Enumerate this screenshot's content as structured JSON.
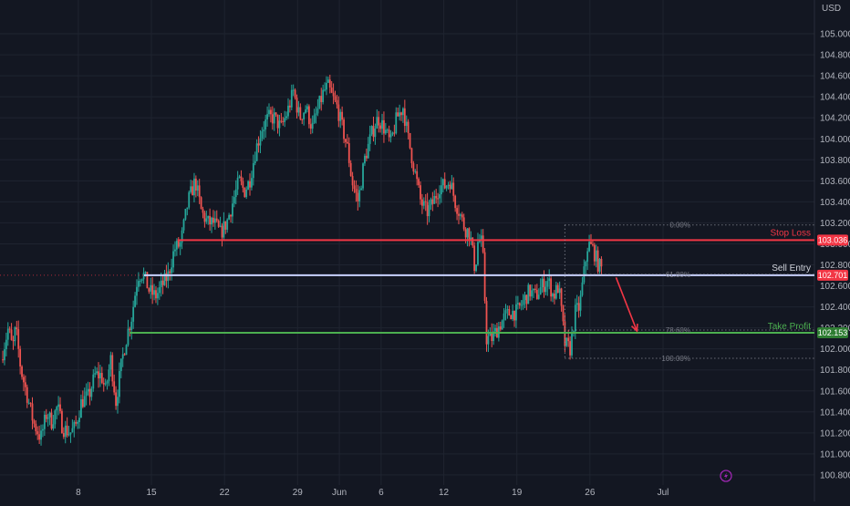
{
  "colors": {
    "background": "#131722",
    "grid": "#1f2430",
    "axis_text": "#b2b5be",
    "candle_up": "#26a69a",
    "candle_down": "#ef5350",
    "stop_loss": "#f23645",
    "sell_entry": "#c9d2ff",
    "take_profit": "#4caf50",
    "arrow": "#f23645",
    "fib_dots": "#9598a1"
  },
  "chart_data": {
    "type": "candlestick",
    "currency": "USD",
    "y_ticks": [
      100.8,
      101.0,
      101.2,
      101.4,
      101.6,
      101.8,
      102.0,
      102.2,
      102.4,
      102.6,
      102.8,
      103.0,
      103.2,
      103.4,
      103.6,
      103.8,
      104.0,
      104.2,
      104.4,
      104.6,
      104.8,
      105.0
    ],
    "y_tick_labels": [
      "100.800",
      "101.000",
      "101.200",
      "101.400",
      "101.600",
      "101.800",
      "102.000",
      "102.200",
      "102.400",
      "102.600",
      "102.800",
      "103.000",
      "103.200",
      "103.400",
      "103.600",
      "103.800",
      "104.000",
      "104.200",
      "104.400",
      "104.600",
      "104.800",
      "105.000"
    ],
    "ylim": [
      100.73,
      105.2
    ],
    "x_range": [
      -7.5,
      70.5
    ],
    "x_ticks": [
      {
        "label": "8",
        "t": 0
      },
      {
        "label": "15",
        "t": 7
      },
      {
        "label": "22",
        "t": 14
      },
      {
        "label": "29",
        "t": 21
      },
      {
        "label": "Jun",
        "t": 25
      },
      {
        "label": "6",
        "t": 29
      },
      {
        "label": "12",
        "t": 35
      },
      {
        "label": "19",
        "t": 42
      },
      {
        "label": "26",
        "t": 49
      },
      {
        "label": "Jul",
        "t": 56
      }
    ],
    "candles_per_day": 6,
    "path_t_start": -7.4,
    "close_path": [
      [
        -7.4,
        101.9
      ],
      [
        -6.7,
        102.2
      ],
      [
        -6.3,
        102.0
      ],
      [
        -6.0,
        102.2
      ],
      [
        -5.5,
        101.8
      ],
      [
        -5.0,
        101.6
      ],
      [
        -4.3,
        101.3
      ],
      [
        -3.6,
        101.15
      ],
      [
        -3.0,
        101.4
      ],
      [
        -2.6,
        101.3
      ],
      [
        -2.0,
        101.45
      ],
      [
        -1.5,
        101.25
      ],
      [
        -0.8,
        101.2
      ],
      [
        -0.3,
        101.25
      ],
      [
        0.3,
        101.5
      ],
      [
        1.0,
        101.55
      ],
      [
        1.6,
        101.75
      ],
      [
        2.2,
        101.75
      ],
      [
        2.6,
        101.6
      ],
      [
        3.1,
        101.9
      ],
      [
        3.6,
        101.5
      ],
      [
        4.2,
        101.9
      ],
      [
        4.7,
        102.15
      ],
      [
        5.1,
        102.3
      ],
      [
        5.7,
        102.7
      ],
      [
        6.2,
        102.72
      ],
      [
        6.8,
        102.55
      ],
      [
        7.4,
        102.5
      ],
      [
        8.0,
        102.6
      ],
      [
        8.6,
        102.7
      ],
      [
        9.2,
        102.95
      ],
      [
        9.8,
        103.0
      ],
      [
        10.5,
        103.4
      ],
      [
        11.2,
        103.6
      ],
      [
        11.8,
        103.3
      ],
      [
        12.4,
        103.2
      ],
      [
        13.0,
        103.2
      ],
      [
        13.6,
        103.1
      ],
      [
        14.2,
        103.2
      ],
      [
        14.8,
        103.4
      ],
      [
        15.4,
        103.6
      ],
      [
        15.9,
        103.5
      ],
      [
        16.4,
        103.6
      ],
      [
        17.0,
        103.9
      ],
      [
        17.6,
        104.1
      ],
      [
        18.2,
        104.2
      ],
      [
        18.8,
        104.2
      ],
      [
        19.4,
        104.1
      ],
      [
        20.0,
        104.25
      ],
      [
        20.6,
        104.45
      ],
      [
        21.2,
        104.2
      ],
      [
        21.8,
        104.3
      ],
      [
        22.4,
        104.1
      ],
      [
        23.0,
        104.3
      ],
      [
        23.5,
        104.45
      ],
      [
        23.9,
        104.5
      ],
      [
        24.3,
        104.4
      ],
      [
        24.8,
        104.3
      ],
      [
        25.3,
        104.1
      ],
      [
        25.8,
        103.9
      ],
      [
        26.2,
        103.6
      ],
      [
        26.8,
        103.4
      ],
      [
        27.4,
        103.8
      ],
      [
        28.1,
        104.05
      ],
      [
        28.7,
        104.2
      ],
      [
        29.3,
        104.1
      ],
      [
        29.9,
        103.95
      ],
      [
        30.5,
        104.2
      ],
      [
        31.1,
        104.3
      ],
      [
        31.6,
        104.0
      ],
      [
        32.2,
        103.7
      ],
      [
        32.8,
        103.4
      ],
      [
        33.4,
        103.3
      ],
      [
        34.0,
        103.4
      ],
      [
        34.6,
        103.55
      ],
      [
        35.1,
        103.55
      ],
      [
        35.6,
        103.6
      ],
      [
        36.1,
        103.4
      ],
      [
        36.5,
        103.3
      ],
      [
        37.0,
        103.15
      ],
      [
        37.5,
        103.1
      ],
      [
        38.0,
        102.75
      ],
      [
        38.3,
        103.05
      ],
      [
        38.7,
        103.0
      ],
      [
        39.1,
        102.1
      ],
      [
        39.6,
        102.1
      ],
      [
        40.2,
        102.2
      ],
      [
        40.8,
        102.3
      ],
      [
        41.4,
        102.35
      ],
      [
        42.0,
        102.35
      ],
      [
        42.6,
        102.45
      ],
      [
        43.2,
        102.55
      ],
      [
        43.8,
        102.5
      ],
      [
        44.4,
        102.6
      ],
      [
        45.0,
        102.65
      ],
      [
        45.5,
        102.5
      ],
      [
        46.0,
        102.6
      ],
      [
        46.6,
        102.05
      ],
      [
        47.1,
        102.0
      ],
      [
        47.6,
        102.35
      ],
      [
        48.0,
        102.4
      ],
      [
        48.4,
        102.7
      ],
      [
        48.8,
        103.0
      ],
      [
        49.3,
        102.95
      ],
      [
        49.8,
        102.8
      ],
      [
        50.2,
        102.75
      ]
    ],
    "annotations": {
      "stop_loss": {
        "label": "Stop Loss",
        "value": 103.036,
        "price_tag": "103.036",
        "t_start": 9.5
      },
      "sell_entry": {
        "label": "Sell Entry",
        "value": 102.701,
        "price_tag": "102.701",
        "t_start": 6.3,
        "dotted_from": -7.5
      },
      "take_profit": {
        "label": "Take Profit",
        "value": 102.153,
        "price_tag": "102.153",
        "t_start": 4.9
      },
      "fib": {
        "t_start": 46.6,
        "t_end": 70.5,
        "levels": [
          {
            "label": "0.00%",
            "value": 103.18
          },
          {
            "label": "61.80%",
            "value": 102.71
          },
          {
            "label": "78.60%",
            "value": 102.18
          },
          {
            "label": "100.00%",
            "value": 101.91
          }
        ]
      },
      "arrow": {
        "from_t": 51.5,
        "from_v": 102.68,
        "to_t": 53.5,
        "to_v": 102.17
      }
    }
  }
}
